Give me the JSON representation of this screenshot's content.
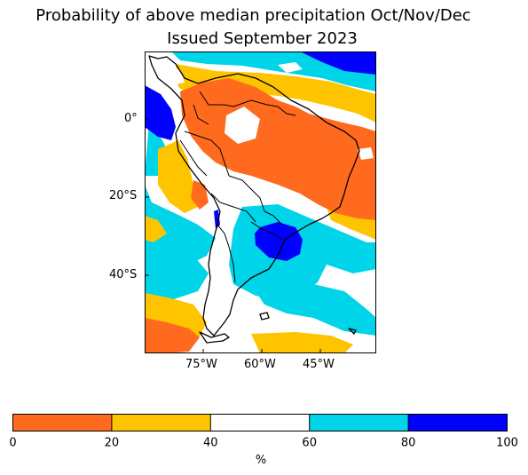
{
  "header": {
    "title_line1": "Probability of above median precipitation Oct/Nov/Dec",
    "title_line2": "Issued September 2023"
  },
  "map": {
    "region": "South America",
    "y_ticks": [
      "0°",
      "20°S",
      "40°S"
    ],
    "x_ticks": [
      "75°W",
      "60°W",
      "45°W"
    ]
  },
  "colorbar": {
    "label": "%",
    "ticks": [
      "0",
      "20",
      "40",
      "60",
      "80",
      "100"
    ],
    "bins": [
      {
        "from": 0,
        "to": 20,
        "color": "#ff6a1f"
      },
      {
        "from": 20,
        "to": 40,
        "color": "#ffc400"
      },
      {
        "from": 40,
        "to": 60,
        "color": "#ffffff"
      },
      {
        "from": 60,
        "to": 80,
        "color": "#00d4e8"
      },
      {
        "from": 80,
        "to": 100,
        "color": "#0000ff"
      }
    ]
  }
}
